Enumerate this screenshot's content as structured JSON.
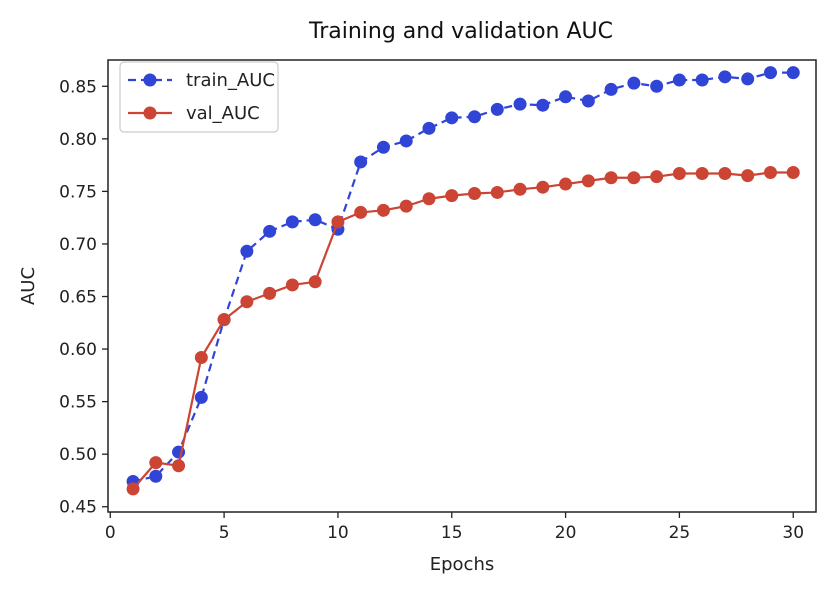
{
  "chart_data": {
    "type": "line",
    "title": "Training and validation AUC",
    "xlabel": "Epochs",
    "ylabel": "AUC",
    "xlim": [
      -0.1,
      31.0
    ],
    "ylim": [
      0.445,
      0.875
    ],
    "xticks": [
      0,
      5,
      10,
      15,
      20,
      25,
      30
    ],
    "yticks": [
      0.45,
      0.5,
      0.55,
      0.6,
      0.65,
      0.7,
      0.75,
      0.8,
      0.85
    ],
    "ytick_labels": [
      "0.45",
      "0.50",
      "0.55",
      "0.60",
      "0.65",
      "0.70",
      "0.75",
      "0.80",
      "0.85"
    ],
    "grid": false,
    "legend_position": "top-left",
    "x": [
      1,
      2,
      3,
      4,
      5,
      6,
      7,
      8,
      9,
      10,
      11,
      12,
      13,
      14,
      15,
      16,
      17,
      18,
      19,
      20,
      21,
      22,
      23,
      24,
      25,
      26,
      27,
      28,
      29,
      30
    ],
    "series": [
      {
        "name": "train_AUC",
        "color": "#3044d6",
        "line_style": "dashed",
        "values": [
          0.474,
          0.479,
          0.502,
          0.554,
          0.628,
          0.693,
          0.712,
          0.721,
          0.723,
          0.714,
          0.778,
          0.792,
          0.798,
          0.81,
          0.82,
          0.821,
          0.828,
          0.833,
          0.832,
          0.84,
          0.836,
          0.847,
          0.853,
          0.85,
          0.856,
          0.856,
          0.859,
          0.857,
          0.863,
          0.863
        ]
      },
      {
        "name": "val_AUC",
        "color": "#cc4433",
        "line_style": "solid",
        "values": [
          0.467,
          0.492,
          0.489,
          0.592,
          0.628,
          0.645,
          0.653,
          0.661,
          0.664,
          0.721,
          0.73,
          0.732,
          0.736,
          0.743,
          0.746,
          0.748,
          0.749,
          0.752,
          0.754,
          0.757,
          0.76,
          0.763,
          0.763,
          0.764,
          0.767,
          0.767,
          0.767,
          0.765,
          0.768,
          0.768
        ]
      }
    ]
  }
}
